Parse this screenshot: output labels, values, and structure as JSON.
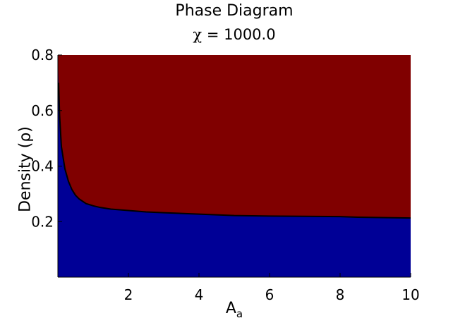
{
  "chart_data": {
    "type": "area",
    "title": "Phase Diagram",
    "subtitle_symbol": "χ",
    "subtitle_value": "= 1000.0",
    "xlabel_main": "A",
    "xlabel_sub": "a",
    "ylabel": "Density (ρ)",
    "xlim": [
      0,
      10
    ],
    "ylim": [
      0,
      0.8
    ],
    "xticks": [
      2,
      4,
      6,
      8,
      10
    ],
    "xtick_labels": [
      "2",
      "4",
      "6",
      "8",
      "10"
    ],
    "yticks": [
      0.2,
      0.4,
      0.6,
      0.8
    ],
    "ytick_labels": [
      "0.2",
      "0.4",
      "0.6",
      "0.8"
    ],
    "grid": false,
    "colors": {
      "upper_region": "#800000",
      "lower_region": "#000096",
      "boundary": "#000000"
    },
    "boundary": {
      "x": [
        0.02,
        0.05,
        0.1,
        0.2,
        0.3,
        0.4,
        0.5,
        0.6,
        0.8,
        1.0,
        1.2,
        1.5,
        2.0,
        2.5,
        3.0,
        4.0,
        5.0,
        6.0,
        7.0,
        8.0,
        8.5,
        9.0,
        10.0
      ],
      "y": [
        0.7,
        0.58,
        0.47,
        0.39,
        0.345,
        0.315,
        0.295,
        0.282,
        0.265,
        0.257,
        0.251,
        0.245,
        0.24,
        0.235,
        0.232,
        0.227,
        0.222,
        0.22,
        0.219,
        0.218,
        0.216,
        0.215,
        0.213
      ]
    }
  }
}
